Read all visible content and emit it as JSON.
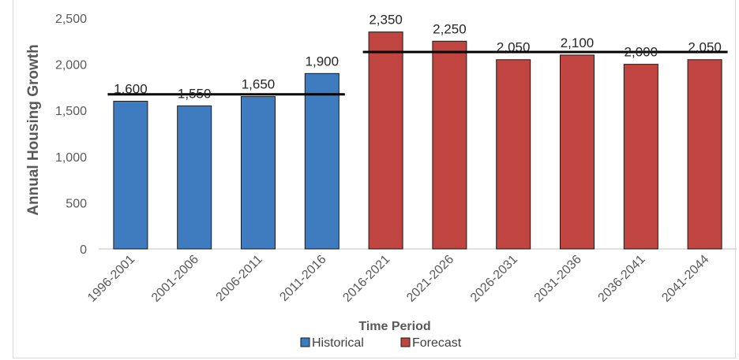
{
  "chart_data": {
    "type": "bar",
    "title": "",
    "xlabel": "Time Period",
    "ylabel": "Annual Housing Growth",
    "ylim": [
      0,
      2500
    ],
    "yticks": [
      0,
      500,
      1000,
      1500,
      2000,
      2500
    ],
    "ytick_labels": [
      "0",
      "500",
      "1,000",
      "1,500",
      "2,000",
      "2,500"
    ],
    "categories": [
      "1996-2001",
      "2001-2006",
      "2006-2011",
      "2011-2016",
      "2016-2021",
      "2021-2026",
      "2026-2031",
      "2031-2036",
      "2036-2041",
      "2041-2044"
    ],
    "series": [
      {
        "name": "Historical",
        "color": "#3f7cbf",
        "values": [
          1600,
          1550,
          1650,
          1900,
          null,
          null,
          null,
          null,
          null,
          null
        ]
      },
      {
        "name": "Forecast",
        "color": "#c0443f",
        "values": [
          null,
          null,
          null,
          null,
          2350,
          2250,
          2050,
          2100,
          2000,
          2050
        ]
      }
    ],
    "data_labels": [
      "1,600",
      "1,550",
      "1,650",
      "1,900",
      "2,350",
      "2,250",
      "2,050",
      "2,100",
      "2,000",
      "2,050"
    ],
    "reference_lines": [
      {
        "from": "1996-2001",
        "to": "2011-2016",
        "value": 1675
      },
      {
        "from": "2016-2021",
        "to": "2041-2044",
        "value": 2133
      }
    ],
    "legend_position": "bottom",
    "grid": false
  }
}
